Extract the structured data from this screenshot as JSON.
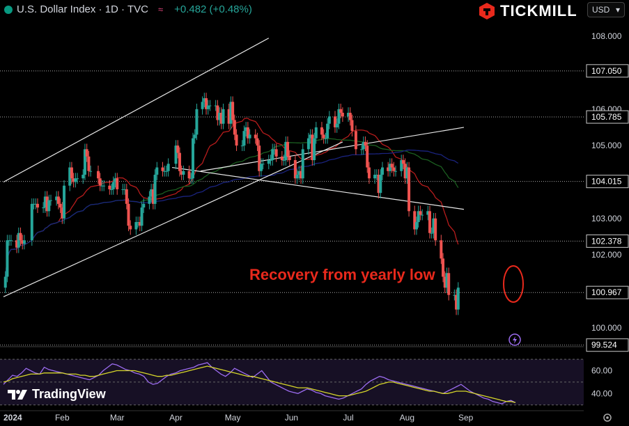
{
  "header": {
    "symbol_line": "U.S. Dollar Index · 1D · TVC",
    "change": "+0.482 (+0.48%)",
    "currency": "USD"
  },
  "brand": {
    "name": "TICKMILL"
  },
  "footer": {
    "logo_text": "TradingView"
  },
  "colors": {
    "up": "#26a69a",
    "down": "#ef5350",
    "annotation": "#e8291c",
    "rsi": "#9c6cf0",
    "rsi_ma": "#d6d62a"
  },
  "chart_data": [
    {
      "type": "candlestick",
      "title": "",
      "annotation": "Recovery from yearly low",
      "x_labels": [
        "2024",
        "Feb",
        "Mar",
        "Apr",
        "May",
        "Jun",
        "Jul",
        "Aug",
        "Sep"
      ],
      "y_ticks": [
        "108.000",
        "106.000",
        "105.000",
        "103.000",
        "102.000",
        "100.000"
      ],
      "y_range": [
        99.5,
        108.9
      ],
      "price_levels": [
        "107.050",
        "105.785",
        "104.015",
        "102.378",
        "100.967",
        "99.524"
      ],
      "trendlines": [
        {
          "name": "channel-upper",
          "points": [
            [
              "2024-01-01",
              104.0
            ],
            [
              "2024-05-20",
              107.95
            ]
          ]
        },
        {
          "name": "channel-lower",
          "points": [
            [
              "2024-01-01",
              100.85
            ],
            [
              "2024-06-28",
              105.1
            ]
          ]
        },
        {
          "name": "wedge-upper",
          "points": [
            [
              "2024-04-14",
              104.3
            ],
            [
              "2024-08-31",
              105.5
            ]
          ]
        },
        {
          "name": "wedge-lower",
          "points": [
            [
              "2024-03-30",
              104.4
            ],
            [
              "2024-08-31",
              103.25
            ]
          ]
        }
      ],
      "ohlc_closes": [
        [
          "2024-01-02",
          101.4
        ],
        [
          "2024-01-03",
          102.4
        ],
        [
          "2024-01-04",
          102.4
        ],
        [
          "2024-01-05",
          102.4
        ],
        [
          "2024-01-08",
          102.2
        ],
        [
          "2024-01-09",
          102.6
        ],
        [
          "2024-01-10",
          102.4
        ],
        [
          "2024-01-11",
          102.3
        ],
        [
          "2024-01-12",
          102.4
        ],
        [
          "2024-01-16",
          103.4
        ],
        [
          "2024-01-17",
          103.4
        ],
        [
          "2024-01-18",
          103.4
        ],
        [
          "2024-01-19",
          103.3
        ],
        [
          "2024-01-22",
          103.3
        ],
        [
          "2024-01-23",
          103.6
        ],
        [
          "2024-01-24",
          103.2
        ],
        [
          "2024-01-25",
          103.5
        ],
        [
          "2024-01-26",
          103.5
        ],
        [
          "2024-01-29",
          103.6
        ],
        [
          "2024-01-30",
          103.4
        ],
        [
          "2024-01-31",
          103.3
        ],
        [
          "2024-02-01",
          103.0
        ],
        [
          "2024-02-02",
          103.9
        ],
        [
          "2024-02-05",
          104.4
        ],
        [
          "2024-02-06",
          104.1
        ],
        [
          "2024-02-07",
          104.0
        ],
        [
          "2024-02-08",
          104.1
        ],
        [
          "2024-02-09",
          104.1
        ],
        [
          "2024-02-12",
          104.2
        ],
        [
          "2024-02-13",
          104.9
        ],
        [
          "2024-02-14",
          104.7
        ],
        [
          "2024-02-15",
          104.3
        ],
        [
          "2024-02-16",
          104.3
        ],
        [
          "2024-02-20",
          104.1
        ],
        [
          "2024-02-21",
          103.9
        ],
        [
          "2024-02-22",
          103.9
        ],
        [
          "2024-02-23",
          103.9
        ],
        [
          "2024-02-26",
          103.8
        ],
        [
          "2024-02-27",
          103.8
        ],
        [
          "2024-02-28",
          104.0
        ],
        [
          "2024-02-29",
          104.1
        ],
        [
          "2024-03-01",
          103.8
        ],
        [
          "2024-03-04",
          103.8
        ],
        [
          "2024-03-05",
          103.8
        ],
        [
          "2024-03-06",
          103.4
        ],
        [
          "2024-03-07",
          102.8
        ],
        [
          "2024-03-08",
          102.7
        ],
        [
          "2024-03-11",
          102.9
        ],
        [
          "2024-03-12",
          102.9
        ],
        [
          "2024-03-13",
          102.8
        ],
        [
          "2024-03-14",
          103.3
        ],
        [
          "2024-03-15",
          103.4
        ],
        [
          "2024-03-18",
          103.6
        ],
        [
          "2024-03-19",
          103.8
        ],
        [
          "2024-03-20",
          103.4
        ],
        [
          "2024-03-21",
          104.2
        ],
        [
          "2024-03-22",
          104.4
        ],
        [
          "2024-03-25",
          104.3
        ],
        [
          "2024-03-26",
          104.3
        ],
        [
          "2024-03-27",
          104.3
        ],
        [
          "2024-03-28",
          104.5
        ],
        [
          "2024-04-01",
          105.0
        ],
        [
          "2024-04-02",
          104.8
        ],
        [
          "2024-04-03",
          104.3
        ],
        [
          "2024-04-04",
          104.2
        ],
        [
          "2024-04-05",
          104.3
        ],
        [
          "2024-04-08",
          104.1
        ],
        [
          "2024-04-09",
          104.1
        ],
        [
          "2024-04-10",
          105.2
        ],
        [
          "2024-04-11",
          105.3
        ],
        [
          "2024-04-12",
          106.0
        ],
        [
          "2024-04-15",
          106.2
        ],
        [
          "2024-04-16",
          106.3
        ],
        [
          "2024-04-17",
          106.0
        ],
        [
          "2024-04-18",
          106.1
        ],
        [
          "2024-04-19",
          106.1
        ],
        [
          "2024-04-22",
          106.1
        ],
        [
          "2024-04-23",
          105.7
        ],
        [
          "2024-04-24",
          105.9
        ],
        [
          "2024-04-25",
          105.6
        ],
        [
          "2024-04-26",
          106.0
        ],
        [
          "2024-04-29",
          105.6
        ],
        [
          "2024-04-30",
          106.2
        ],
        [
          "2024-05-01",
          105.7
        ],
        [
          "2024-05-02",
          105.3
        ],
        [
          "2024-05-03",
          105.0
        ],
        [
          "2024-05-06",
          105.0
        ],
        [
          "2024-05-07",
          105.4
        ],
        [
          "2024-05-08",
          105.5
        ],
        [
          "2024-05-09",
          105.2
        ],
        [
          "2024-05-10",
          105.3
        ],
        [
          "2024-05-13",
          105.2
        ],
        [
          "2024-05-14",
          105.0
        ],
        [
          "2024-05-15",
          104.3
        ],
        [
          "2024-05-16",
          104.5
        ],
        [
          "2024-05-17",
          104.5
        ],
        [
          "2024-05-20",
          104.6
        ],
        [
          "2024-05-21",
          104.6
        ],
        [
          "2024-05-22",
          104.9
        ],
        [
          "2024-05-23",
          104.9
        ],
        [
          "2024-05-24",
          104.7
        ],
        [
          "2024-05-27",
          104.6
        ],
        [
          "2024-05-28",
          104.6
        ],
        [
          "2024-05-29",
          105.1
        ],
        [
          "2024-05-30",
          104.7
        ],
        [
          "2024-05-31",
          104.6
        ],
        [
          "2024-06-03",
          104.1
        ],
        [
          "2024-06-04",
          104.2
        ],
        [
          "2024-06-05",
          104.3
        ],
        [
          "2024-06-06",
          104.1
        ],
        [
          "2024-06-07",
          104.9
        ],
        [
          "2024-06-10",
          105.2
        ],
        [
          "2024-06-11",
          105.3
        ],
        [
          "2024-06-12",
          104.6
        ],
        [
          "2024-06-13",
          105.2
        ],
        [
          "2024-06-14",
          105.5
        ],
        [
          "2024-06-17",
          105.3
        ],
        [
          "2024-06-18",
          105.2
        ],
        [
          "2024-06-19",
          105.2
        ],
        [
          "2024-06-20",
          105.6
        ],
        [
          "2024-06-21",
          105.8
        ],
        [
          "2024-06-24",
          105.5
        ],
        [
          "2024-06-25",
          105.6
        ],
        [
          "2024-06-26",
          106.0
        ],
        [
          "2024-06-27",
          105.9
        ],
        [
          "2024-06-28",
          105.8
        ],
        [
          "2024-07-01",
          105.9
        ],
        [
          "2024-07-02",
          105.7
        ],
        [
          "2024-07-03",
          105.4
        ],
        [
          "2024-07-05",
          104.9
        ],
        [
          "2024-07-08",
          104.9
        ],
        [
          "2024-07-09",
          105.1
        ],
        [
          "2024-07-10",
          105.0
        ],
        [
          "2024-07-11",
          104.4
        ],
        [
          "2024-07-12",
          104.1
        ],
        [
          "2024-07-15",
          104.2
        ],
        [
          "2024-07-16",
          104.2
        ],
        [
          "2024-07-17",
          103.7
        ],
        [
          "2024-07-18",
          104.2
        ],
        [
          "2024-07-19",
          104.4
        ],
        [
          "2024-07-22",
          104.3
        ],
        [
          "2024-07-23",
          104.5
        ],
        [
          "2024-07-24",
          104.4
        ],
        [
          "2024-07-25",
          104.3
        ],
        [
          "2024-07-26",
          104.3
        ],
        [
          "2024-07-29",
          104.6
        ],
        [
          "2024-07-30",
          104.5
        ],
        [
          "2024-07-31",
          104.1
        ],
        [
          "2024-08-01",
          104.4
        ],
        [
          "2024-08-02",
          103.2
        ],
        [
          "2024-08-05",
          102.7
        ],
        [
          "2024-08-06",
          102.9
        ],
        [
          "2024-08-07",
          103.2
        ],
        [
          "2024-08-08",
          103.1
        ],
        [
          "2024-08-09",
          103.1
        ],
        [
          "2024-08-12",
          103.2
        ],
        [
          "2024-08-13",
          102.6
        ],
        [
          "2024-08-14",
          102.6
        ],
        [
          "2024-08-15",
          103.0
        ],
        [
          "2024-08-16",
          102.4
        ],
        [
          "2024-08-19",
          101.9
        ],
        [
          "2024-08-20",
          101.4
        ],
        [
          "2024-08-21",
          101.1
        ],
        [
          "2024-08-22",
          101.5
        ],
        [
          "2024-08-23",
          100.9
        ],
        [
          "2024-08-26",
          100.9
        ],
        [
          "2024-08-27",
          100.5
        ],
        [
          "2024-08-28",
          101.1
        ]
      ]
    },
    {
      "type": "line",
      "title": "",
      "y_ticks": [
        "60.00",
        "40.00"
      ],
      "y_range": [
        28,
        78
      ],
      "series": [
        {
          "name": "",
          "values": [
            48,
            52,
            56,
            55,
            58,
            62,
            60,
            58,
            57,
            63,
            61,
            60,
            59,
            58,
            57,
            56,
            55,
            54,
            53,
            52,
            54,
            56,
            60,
            63,
            66,
            65,
            63,
            61,
            60,
            58,
            57,
            55,
            50,
            48,
            49,
            52,
            55,
            57,
            58,
            60,
            61,
            62,
            63,
            65,
            66,
            67,
            63,
            60,
            57,
            55,
            58,
            62,
            60,
            58,
            56,
            54,
            57,
            60,
            55,
            50,
            48,
            46,
            44,
            42,
            41,
            40,
            42,
            44,
            43,
            41,
            40,
            38,
            37,
            36,
            35,
            36,
            38,
            40,
            42,
            44,
            48,
            51,
            53,
            55,
            54,
            52,
            51,
            50,
            49,
            48,
            47,
            46,
            45,
            44,
            43,
            42,
            41,
            40,
            42,
            44,
            46,
            48,
            45,
            42,
            40,
            38,
            36,
            35,
            33,
            32,
            31,
            33,
            34,
            32
          ]
        },
        {
          "name": "",
          "values": [
            50,
            51,
            53,
            54,
            55,
            56,
            57,
            57,
            57,
            58,
            58,
            58,
            58,
            58,
            57,
            57,
            57,
            56,
            56,
            55,
            55,
            56,
            57,
            58,
            59,
            60,
            60,
            60,
            60,
            60,
            59,
            58,
            57,
            56,
            55,
            55,
            56,
            56,
            57,
            58,
            59,
            60,
            61,
            62,
            63,
            64,
            63,
            62,
            61,
            60,
            59,
            58,
            57,
            56,
            55,
            55,
            54,
            53,
            52,
            51,
            50,
            49,
            48,
            47,
            46,
            45,
            45,
            45,
            44,
            43,
            42,
            41,
            40,
            39,
            38,
            38,
            38,
            39,
            40,
            41,
            42,
            44,
            46,
            48,
            49,
            50,
            50,
            49,
            48,
            47,
            46,
            45,
            44,
            43,
            42,
            42,
            41,
            40,
            40,
            41,
            42,
            42,
            42,
            41,
            40,
            39,
            38,
            37,
            36,
            35,
            34,
            33,
            33,
            32
          ]
        }
      ]
    }
  ]
}
